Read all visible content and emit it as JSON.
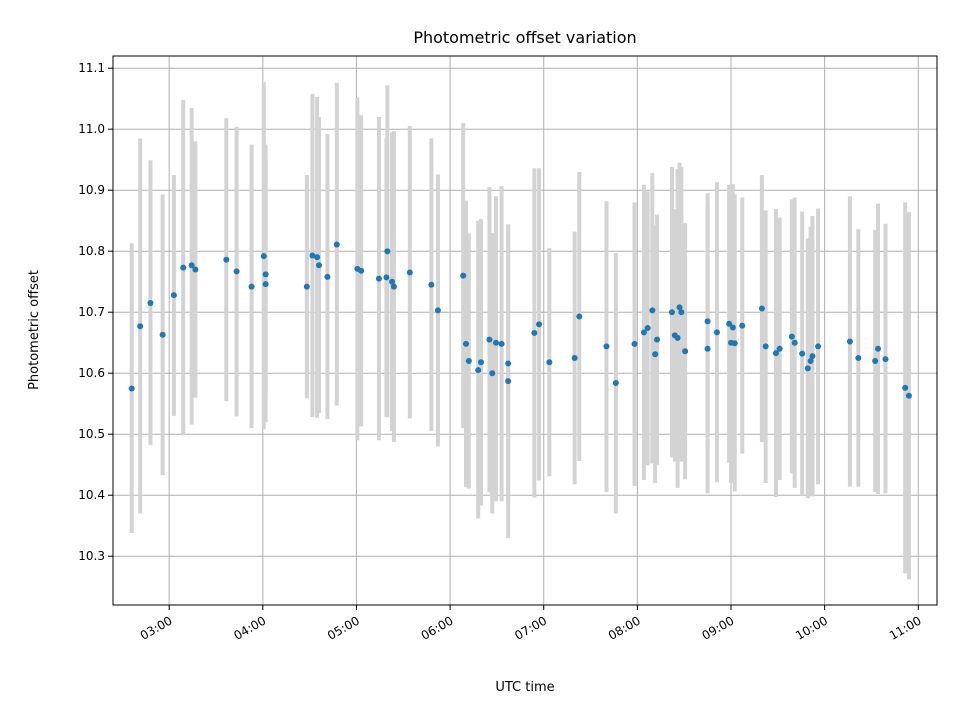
{
  "chart_data": {
    "type": "scatter",
    "title": "Photometric offset variation",
    "xlabel": "UTC time",
    "ylabel": "Photometric offset",
    "xlim": [
      2.4,
      11.2
    ],
    "ylim": [
      10.22,
      11.12
    ],
    "x_ticks": [
      {
        "value": 3,
        "label": "03:00"
      },
      {
        "value": 4,
        "label": "04:00"
      },
      {
        "value": 5,
        "label": "05:00"
      },
      {
        "value": 6,
        "label": "06:00"
      },
      {
        "value": 7,
        "label": "07:00"
      },
      {
        "value": 8,
        "label": "08:00"
      },
      {
        "value": 9,
        "label": "09:00"
      },
      {
        "value": 10,
        "label": "10:00"
      },
      {
        "value": 11,
        "label": "11:00"
      }
    ],
    "y_ticks": [
      {
        "value": 10.3,
        "label": "10.3"
      },
      {
        "value": 10.4,
        "label": "10.4"
      },
      {
        "value": 10.5,
        "label": "10.5"
      },
      {
        "value": 10.6,
        "label": "10.6"
      },
      {
        "value": 10.7,
        "label": "10.7"
      },
      {
        "value": 10.8,
        "label": "10.8"
      },
      {
        "value": 10.9,
        "label": "10.9"
      },
      {
        "value": 11.0,
        "label": "11.0"
      },
      {
        "value": 11.1,
        "label": "11.1"
      }
    ],
    "grid": true,
    "colors": {
      "point": "#1f77b4",
      "errorbar": "#d3d3d3",
      "grid": "#b0b0b0"
    },
    "points": [
      {
        "x": 2.6,
        "y": 10.575,
        "lo": 10.338,
        "hi": 10.813
      },
      {
        "x": 2.69,
        "y": 10.677,
        "lo": 10.37,
        "hi": 10.985
      },
      {
        "x": 2.8,
        "y": 10.715,
        "lo": 10.482,
        "hi": 10.949
      },
      {
        "x": 2.93,
        "y": 10.663,
        "lo": 10.433,
        "hi": 10.893
      },
      {
        "x": 3.05,
        "y": 10.728,
        "lo": 10.53,
        "hi": 10.925
      },
      {
        "x": 3.15,
        "y": 10.773,
        "lo": 10.498,
        "hi": 11.048
      },
      {
        "x": 3.24,
        "y": 10.777,
        "lo": 10.516,
        "hi": 11.035
      },
      {
        "x": 3.28,
        "y": 10.77,
        "lo": 10.56,
        "hi": 10.98
      },
      {
        "x": 3.61,
        "y": 10.786,
        "lo": 10.554,
        "hi": 11.018
      },
      {
        "x": 3.72,
        "y": 10.767,
        "lo": 10.529,
        "hi": 11.004
      },
      {
        "x": 3.88,
        "y": 10.742,
        "lo": 10.51,
        "hi": 10.975
      },
      {
        "x": 4.01,
        "y": 10.792,
        "lo": 10.508,
        "hi": 11.077
      },
      {
        "x": 4.03,
        "y": 10.746,
        "lo": 10.52,
        "hi": 10.975
      },
      {
        "x": 4.03,
        "y": 10.762,
        "lo": 10.565,
        "hi": 10.958
      },
      {
        "x": 4.47,
        "y": 10.742,
        "lo": 10.559,
        "hi": 10.925
      },
      {
        "x": 4.53,
        "y": 10.793,
        "lo": 10.528,
        "hi": 11.058
      },
      {
        "x": 4.58,
        "y": 10.79,
        "lo": 10.527,
        "hi": 11.053
      },
      {
        "x": 4.6,
        "y": 10.777,
        "lo": 10.535,
        "hi": 11.02
      },
      {
        "x": 4.69,
        "y": 10.758,
        "lo": 10.525,
        "hi": 10.992
      },
      {
        "x": 4.79,
        "y": 10.811,
        "lo": 10.547,
        "hi": 11.076
      },
      {
        "x": 5.01,
        "y": 10.771,
        "lo": 10.49,
        "hi": 11.052
      },
      {
        "x": 5.05,
        "y": 10.768,
        "lo": 10.513,
        "hi": 11.023
      },
      {
        "x": 5.24,
        "y": 10.755,
        "lo": 10.49,
        "hi": 11.02
      },
      {
        "x": 5.32,
        "y": 10.757,
        "lo": 10.528,
        "hi": 10.985
      },
      {
        "x": 5.33,
        "y": 10.8,
        "lo": 10.528,
        "hi": 11.072
      },
      {
        "x": 5.38,
        "y": 10.75,
        "lo": 10.505,
        "hi": 10.995
      },
      {
        "x": 5.4,
        "y": 10.742,
        "lo": 10.487,
        "hi": 10.997
      },
      {
        "x": 5.57,
        "y": 10.765,
        "lo": 10.526,
        "hi": 11.005
      },
      {
        "x": 5.8,
        "y": 10.745,
        "lo": 10.505,
        "hi": 10.985
      },
      {
        "x": 5.87,
        "y": 10.703,
        "lo": 10.48,
        "hi": 10.926
      },
      {
        "x": 6.14,
        "y": 10.76,
        "lo": 10.51,
        "hi": 11.01
      },
      {
        "x": 6.17,
        "y": 10.648,
        "lo": 10.413,
        "hi": 10.883
      },
      {
        "x": 6.2,
        "y": 10.62,
        "lo": 10.411,
        "hi": 10.829
      },
      {
        "x": 6.3,
        "y": 10.605,
        "lo": 10.362,
        "hi": 10.85
      },
      {
        "x": 6.33,
        "y": 10.618,
        "lo": 10.383,
        "hi": 10.853
      },
      {
        "x": 6.42,
        "y": 10.655,
        "lo": 10.405,
        "hi": 10.905
      },
      {
        "x": 6.45,
        "y": 10.6,
        "lo": 10.37,
        "hi": 10.83
      },
      {
        "x": 6.49,
        "y": 10.65,
        "lo": 10.39,
        "hi": 10.89
      },
      {
        "x": 6.55,
        "y": 10.648,
        "lo": 10.39,
        "hi": 10.907
      },
      {
        "x": 6.62,
        "y": 10.616,
        "lo": 10.388,
        "hi": 10.844
      },
      {
        "x": 6.62,
        "y": 10.587,
        "lo": 10.33,
        "hi": 10.844
      },
      {
        "x": 6.9,
        "y": 10.666,
        "lo": 10.396,
        "hi": 10.936
      },
      {
        "x": 6.95,
        "y": 10.68,
        "lo": 10.424,
        "hi": 10.936
      },
      {
        "x": 7.06,
        "y": 10.618,
        "lo": 10.431,
        "hi": 10.805
      },
      {
        "x": 7.33,
        "y": 10.625,
        "lo": 10.418,
        "hi": 10.832
      },
      {
        "x": 7.38,
        "y": 10.693,
        "lo": 10.456,
        "hi": 10.93
      },
      {
        "x": 7.67,
        "y": 10.644,
        "lo": 10.405,
        "hi": 10.882
      },
      {
        "x": 7.77,
        "y": 10.584,
        "lo": 10.37,
        "hi": 10.797
      },
      {
        "x": 7.97,
        "y": 10.648,
        "lo": 10.415,
        "hi": 10.88
      },
      {
        "x": 8.07,
        "y": 10.667,
        "lo": 10.425,
        "hi": 10.909
      },
      {
        "x": 8.11,
        "y": 10.674,
        "lo": 10.449,
        "hi": 10.898
      },
      {
        "x": 8.16,
        "y": 10.703,
        "lo": 10.452,
        "hi": 10.928
      },
      {
        "x": 8.19,
        "y": 10.631,
        "lo": 10.42,
        "hi": 10.842
      },
      {
        "x": 8.21,
        "y": 10.655,
        "lo": 10.45,
        "hi": 10.86
      },
      {
        "x": 8.37,
        "y": 10.7,
        "lo": 10.462,
        "hi": 10.938
      },
      {
        "x": 8.4,
        "y": 10.662,
        "lo": 10.455,
        "hi": 10.869
      },
      {
        "x": 8.43,
        "y": 10.658,
        "lo": 10.412,
        "hi": 10.935
      },
      {
        "x": 8.45,
        "y": 10.708,
        "lo": 10.47,
        "hi": 10.945
      },
      {
        "x": 8.47,
        "y": 10.7,
        "lo": 10.455,
        "hi": 10.938
      },
      {
        "x": 8.51,
        "y": 10.636,
        "lo": 10.426,
        "hi": 10.846
      },
      {
        "x": 8.75,
        "y": 10.64,
        "lo": 10.403,
        "hi": 10.877
      },
      {
        "x": 8.75,
        "y": 10.685,
        "lo": 10.475,
        "hi": 10.895
      },
      {
        "x": 8.85,
        "y": 10.667,
        "lo": 10.421,
        "hi": 10.913
      },
      {
        "x": 8.98,
        "y": 10.681,
        "lo": 10.453,
        "hi": 10.909
      },
      {
        "x": 9.0,
        "y": 10.65,
        "lo": 10.42,
        "hi": 10.9
      },
      {
        "x": 9.02,
        "y": 10.675,
        "lo": 10.44,
        "hi": 10.91
      },
      {
        "x": 9.04,
        "y": 10.649,
        "lo": 10.406,
        "hi": 10.893
      },
      {
        "x": 9.12,
        "y": 10.678,
        "lo": 10.468,
        "hi": 10.888
      },
      {
        "x": 9.33,
        "y": 10.706,
        "lo": 10.487,
        "hi": 10.925
      },
      {
        "x": 9.37,
        "y": 10.644,
        "lo": 10.42,
        "hi": 10.867
      },
      {
        "x": 9.48,
        "y": 10.633,
        "lo": 10.397,
        "hi": 10.869
      },
      {
        "x": 9.52,
        "y": 10.64,
        "lo": 10.425,
        "hi": 10.855
      },
      {
        "x": 9.65,
        "y": 10.66,
        "lo": 10.436,
        "hi": 10.885
      },
      {
        "x": 9.68,
        "y": 10.65,
        "lo": 10.412,
        "hi": 10.888
      },
      {
        "x": 9.76,
        "y": 10.632,
        "lo": 10.4,
        "hi": 10.865
      },
      {
        "x": 9.82,
        "y": 10.608,
        "lo": 10.395,
        "hi": 10.821
      },
      {
        "x": 9.85,
        "y": 10.62,
        "lo": 10.4,
        "hi": 10.84
      },
      {
        "x": 9.87,
        "y": 10.628,
        "lo": 10.398,
        "hi": 10.858
      },
      {
        "x": 9.93,
        "y": 10.644,
        "lo": 10.418,
        "hi": 10.87
      },
      {
        "x": 10.27,
        "y": 10.652,
        "lo": 10.414,
        "hi": 10.89
      },
      {
        "x": 10.36,
        "y": 10.625,
        "lo": 10.414,
        "hi": 10.836
      },
      {
        "x": 10.54,
        "y": 10.62,
        "lo": 10.405,
        "hi": 10.835
      },
      {
        "x": 10.57,
        "y": 10.64,
        "lo": 10.402,
        "hi": 10.878
      },
      {
        "x": 10.65,
        "y": 10.623,
        "lo": 10.403,
        "hi": 10.845
      },
      {
        "x": 10.86,
        "y": 10.576,
        "lo": 10.272,
        "hi": 10.88
      },
      {
        "x": 10.9,
        "y": 10.563,
        "lo": 10.262,
        "hi": 10.864
      }
    ]
  }
}
